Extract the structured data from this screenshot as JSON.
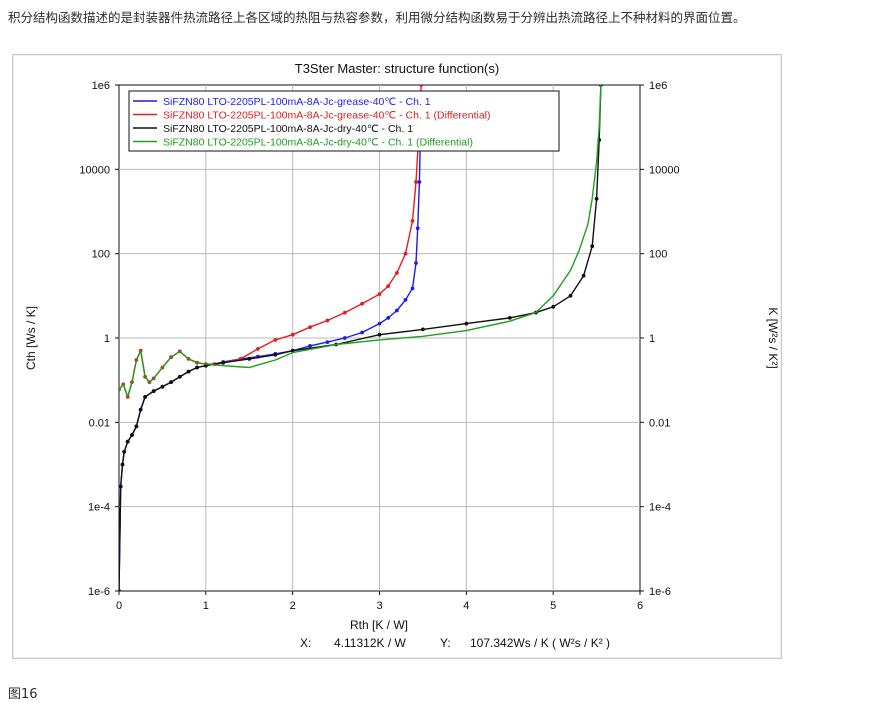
{
  "intro_text": "积分结构函数描述的是封装器件热流路径上各区域的热阻与热容参数，利用微分结构函数易于分辨出热流路径上不种材料的界面位置。",
  "figure_caption": "图16",
  "readout": {
    "x_label": "X:",
    "x_value": "4.11312K / W",
    "y_label": "Y:",
    "y_value": "107.342Ws / K ( W²s / K² )"
  },
  "chart_data": {
    "type": "line",
    "title": "T3Ster Master: structure function(s)",
    "xlabel": "Rth  [K / W]",
    "ylabel": "Cth  [Ws / K]",
    "ylabel_right": "K  [W²s / K²]",
    "xlim": [
      0,
      6
    ],
    "ylim": [
      1e-06,
      1000000.0
    ],
    "y_scale": "log",
    "x_ticks": [
      "0",
      "1",
      "2",
      "3",
      "4",
      "5",
      "6"
    ],
    "y_ticks": [
      "1e-6",
      "1e-4",
      "0.01",
      "1",
      "100",
      "10000",
      "1e6"
    ],
    "grid": true,
    "legend_position": "top-left",
    "series": [
      {
        "name": "SiFZN80 LTO-2205PL-100mA-8A-Jc-grease-40℃ - Ch. 1",
        "color": "#1c1cf0",
        "marker": true,
        "x": [
          0.0,
          0.02,
          0.04,
          0.06,
          0.1,
          0.15,
          0.2,
          0.25,
          0.3,
          0.4,
          0.5,
          0.6,
          0.7,
          0.8,
          0.9,
          1.0,
          1.2,
          1.4,
          1.6,
          1.8,
          2.0,
          2.2,
          2.4,
          2.6,
          2.8,
          3.0,
          3.1,
          3.2,
          3.3,
          3.38,
          3.42,
          3.44,
          3.46,
          3.47
        ],
        "y": [
          1e-06,
          0.0003,
          0.001,
          0.002,
          0.0035,
          0.005,
          0.008,
          0.02,
          0.04,
          0.055,
          0.07,
          0.09,
          0.12,
          0.16,
          0.2,
          0.22,
          0.27,
          0.32,
          0.36,
          0.42,
          0.5,
          0.65,
          0.8,
          1.0,
          1.35,
          2.2,
          3.0,
          4.5,
          8.0,
          15,
          60,
          400,
          5000,
          50000
        ]
      },
      {
        "name": "SiFZN80 LTO-2205PL-100mA-8A-Jc-grease-40℃ - Ch. 1 (Differential)",
        "color": "#e02020",
        "marker": true,
        "x": [
          0.0,
          0.05,
          0.1,
          0.15,
          0.2,
          0.25,
          0.3,
          0.35,
          0.4,
          0.5,
          0.6,
          0.7,
          0.8,
          0.9,
          1.0,
          1.1,
          1.2,
          1.4,
          1.6,
          1.8,
          2.0,
          2.2,
          2.4,
          2.6,
          2.8,
          3.0,
          3.1,
          3.2,
          3.3,
          3.38,
          3.42,
          3.45,
          3.48
        ],
        "y": [
          0.06,
          0.08,
          0.04,
          0.09,
          0.3,
          0.5,
          0.12,
          0.09,
          0.11,
          0.2,
          0.35,
          0.48,
          0.32,
          0.26,
          0.24,
          0.24,
          0.26,
          0.32,
          0.55,
          0.9,
          1.2,
          1.8,
          2.6,
          4.0,
          6.5,
          11,
          17,
          35,
          100,
          600,
          5000,
          60000,
          1000000
        ]
      },
      {
        "name": "SiFZN80 LTO-2205PL-100mA-8A-Jc-dry-40℃ - Ch. 1",
        "color": "#111111",
        "marker": true,
        "x": [
          0.0,
          0.02,
          0.04,
          0.06,
          0.1,
          0.15,
          0.2,
          0.25,
          0.3,
          0.4,
          0.5,
          0.6,
          0.7,
          0.8,
          0.9,
          1.0,
          1.2,
          1.5,
          1.8,
          2.0,
          2.5,
          3.0,
          3.5,
          4.0,
          4.5,
          4.8,
          5.0,
          5.2,
          5.35,
          5.45,
          5.5,
          5.53,
          5.55
        ],
        "y": [
          1e-06,
          0.0003,
          0.001,
          0.002,
          0.0035,
          0.005,
          0.008,
          0.02,
          0.04,
          0.055,
          0.07,
          0.09,
          0.12,
          0.16,
          0.2,
          0.22,
          0.26,
          0.32,
          0.4,
          0.5,
          0.7,
          1.2,
          1.6,
          2.2,
          3.0,
          4.0,
          5.5,
          10,
          30,
          150,
          2000,
          50000,
          1000000
        ]
      },
      {
        "name": "SiFZN80 LTO-2205PL-100mA-8A-Jc-dry-40℃ - Ch. 1 (Differential)",
        "color": "#1e9e1e",
        "marker": false,
        "x": [
          0.0,
          0.05,
          0.1,
          0.15,
          0.2,
          0.25,
          0.3,
          0.35,
          0.4,
          0.5,
          0.6,
          0.7,
          0.8,
          0.9,
          1.0,
          1.2,
          1.5,
          1.8,
          2.0,
          2.5,
          3.0,
          3.5,
          4.0,
          4.5,
          4.8,
          5.0,
          5.2,
          5.3,
          5.4,
          5.45,
          5.5,
          5.53,
          5.55
        ],
        "y": [
          0.06,
          0.08,
          0.04,
          0.09,
          0.3,
          0.5,
          0.12,
          0.09,
          0.11,
          0.2,
          0.35,
          0.48,
          0.32,
          0.26,
          0.24,
          0.22,
          0.2,
          0.3,
          0.45,
          0.7,
          0.9,
          1.1,
          1.5,
          2.5,
          4.0,
          10,
          40,
          120,
          500,
          2000,
          15000,
          100000,
          1000000
        ]
      }
    ]
  }
}
